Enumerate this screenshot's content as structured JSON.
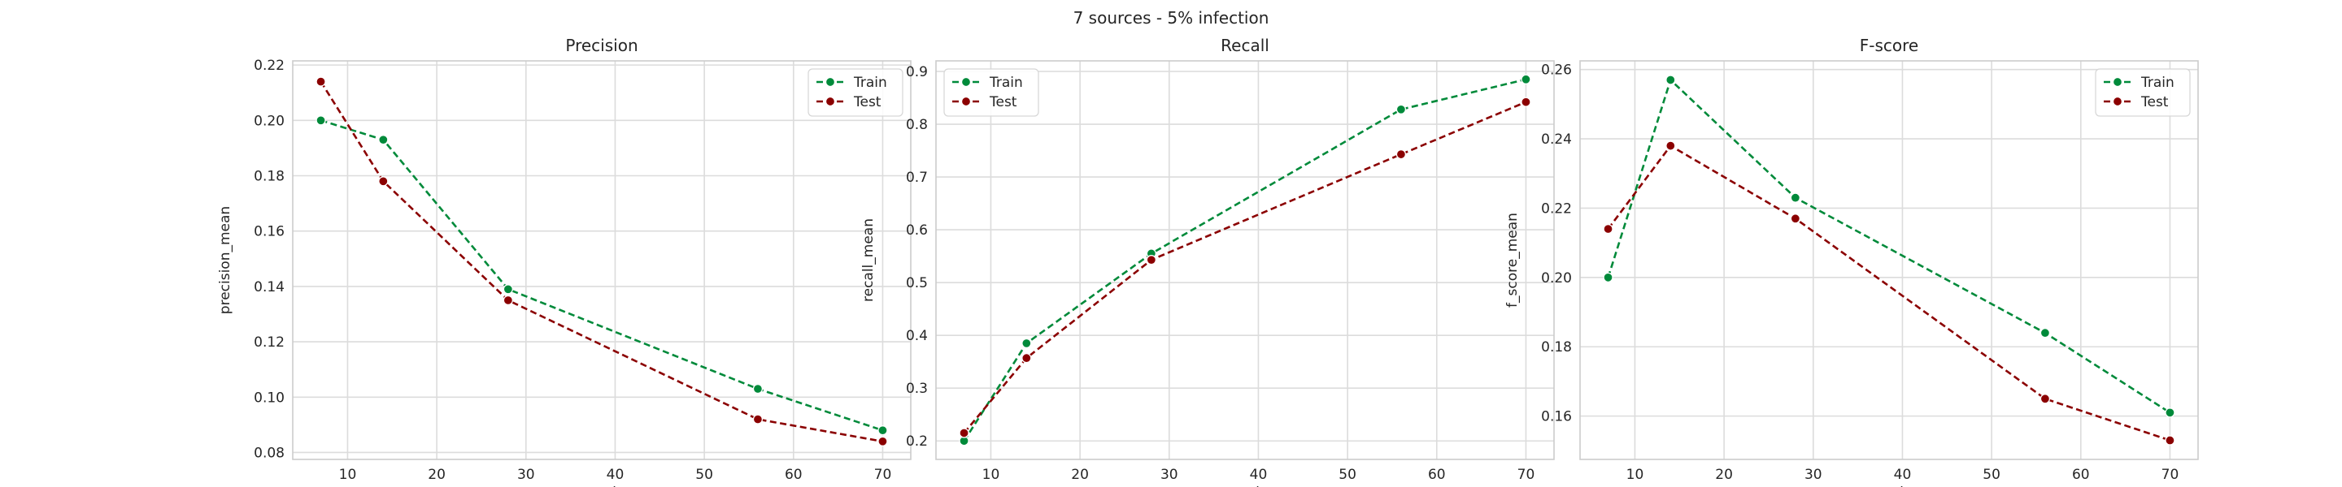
{
  "suptitle": "7 sources - 5% infection",
  "chart_data": [
    {
      "type": "line",
      "title": "Precision",
      "xlabel": "top_k",
      "ylabel": "precision_mean",
      "x": [
        7,
        14,
        28,
        56,
        70
      ],
      "xlim": [
        3.85,
        73.15
      ],
      "ylim": [
        0.0775,
        0.2215
      ],
      "xticks": [
        10,
        20,
        30,
        40,
        50,
        60,
        70
      ],
      "yticks": [
        0.08,
        0.1,
        0.12,
        0.14,
        0.16,
        0.18,
        0.2,
        0.22
      ],
      "ytick_labels": [
        "0.08",
        "0.10",
        "0.12",
        "0.14",
        "0.16",
        "0.18",
        "0.20",
        "0.22"
      ],
      "legend": "top-right",
      "grid": true,
      "series": [
        {
          "name": "Train",
          "color": "#008a3a",
          "values": [
            0.2,
            0.193,
            0.139,
            0.103,
            0.088
          ]
        },
        {
          "name": "Test",
          "color": "#8b0000",
          "values": [
            0.214,
            0.178,
            0.135,
            0.092,
            0.084
          ]
        }
      ]
    },
    {
      "type": "line",
      "title": "Recall",
      "xlabel": "top_k",
      "ylabel": "recall_mean",
      "x": [
        7,
        14,
        28,
        56,
        70
      ],
      "xlim": [
        3.85,
        73.15
      ],
      "ylim": [
        0.165,
        0.92
      ],
      "xticks": [
        10,
        20,
        30,
        40,
        50,
        60,
        70
      ],
      "yticks": [
        0.2,
        0.3,
        0.4,
        0.5,
        0.6,
        0.7,
        0.8,
        0.9
      ],
      "ytick_labels": [
        "0.2",
        "0.3",
        "0.4",
        "0.5",
        "0.6",
        "0.7",
        "0.8",
        "0.9"
      ],
      "legend": "top-left",
      "grid": true,
      "series": [
        {
          "name": "Train",
          "color": "#008a3a",
          "values": [
            0.2,
            0.385,
            0.555,
            0.828,
            0.885
          ]
        },
        {
          "name": "Test",
          "color": "#8b0000",
          "values": [
            0.215,
            0.357,
            0.543,
            0.743,
            0.842
          ]
        }
      ]
    },
    {
      "type": "line",
      "title": "F-score",
      "xlabel": "top_k",
      "ylabel": "f_score_mean",
      "x": [
        7,
        14,
        28,
        56,
        70
      ],
      "xlim": [
        3.85,
        73.15
      ],
      "ylim": [
        0.1475,
        0.2625
      ],
      "xticks": [
        10,
        20,
        30,
        40,
        50,
        60,
        70
      ],
      "yticks": [
        0.16,
        0.18,
        0.2,
        0.22,
        0.24,
        0.26
      ],
      "ytick_labels": [
        "0.16",
        "0.18",
        "0.20",
        "0.22",
        "0.24",
        "0.26"
      ],
      "legend": "top-right",
      "grid": true,
      "series": [
        {
          "name": "Train",
          "color": "#008a3a",
          "values": [
            0.2,
            0.257,
            0.223,
            0.184,
            0.161
          ]
        },
        {
          "name": "Test",
          "color": "#8b0000",
          "values": [
            0.214,
            0.238,
            0.217,
            0.165,
            0.153
          ]
        }
      ]
    }
  ]
}
